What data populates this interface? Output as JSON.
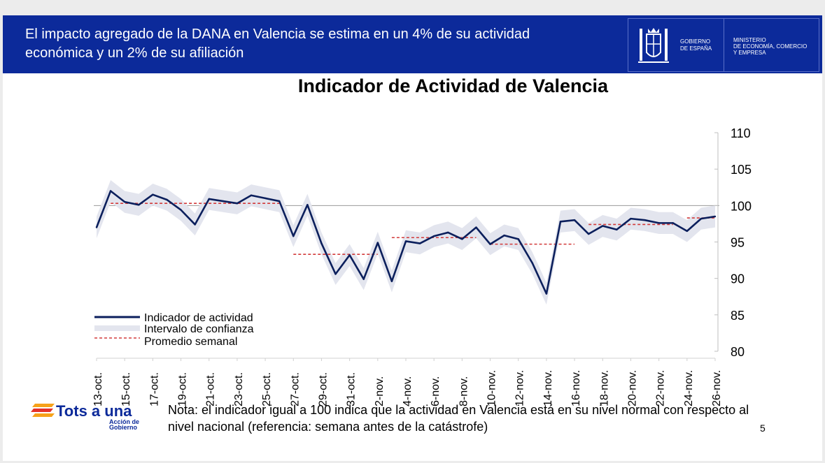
{
  "header": {
    "title": "El impacto agregado de la DANA en Valencia se estima en un 4% de su actividad económica y un 2% de su afiliación",
    "gobierno_line1": "GOBIERNO",
    "gobierno_line2": "DE ESPAÑA",
    "ministerio_line1": "MINISTERIO",
    "ministerio_line2": "DE ECONOMÍA, COMERCIO",
    "ministerio_line3": "Y EMPRESA"
  },
  "chart_data": {
    "type": "line",
    "title": "Indicador de Actividad de Valencia",
    "ylim": [
      80,
      110
    ],
    "yticks": [
      "80",
      "85",
      "90",
      "95",
      "100",
      "105",
      "110"
    ],
    "reference_line": 100,
    "x_tick_labels": [
      "13-oct.",
      "15-oct.",
      "17-oct.",
      "19-oct.",
      "21-oct.",
      "23-oct.",
      "25-oct.",
      "27-oct.",
      "29-oct.",
      "31-oct.",
      "2-nov.",
      "4-nov.",
      "6-nov.",
      "8-nov.",
      "10-nov.",
      "12-nov.",
      "14-nov.",
      "16-nov.",
      "18-nov.",
      "20-nov.",
      "22-nov.",
      "24-nov.",
      "26-nov."
    ],
    "series": [
      {
        "name": "Indicador de actividad",
        "color": "#0b1f5c",
        "values": [
          97.0,
          102.0,
          100.5,
          100.1,
          101.5,
          100.8,
          99.4,
          97.4,
          100.9,
          100.6,
          100.3,
          101.4,
          101.0,
          100.6,
          95.8,
          100.1,
          94.8,
          90.6,
          93.2,
          89.9,
          94.9,
          89.6,
          95.1,
          94.8,
          95.8,
          96.3,
          95.4,
          97.0,
          94.7,
          95.9,
          95.4,
          92.1,
          87.9,
          97.8,
          98.0,
          96.1,
          97.2,
          96.7,
          98.2,
          98.0,
          97.6,
          97.6,
          96.5,
          98.2,
          98.5
        ]
      },
      {
        "name": "Intervalo de confianza",
        "color": "#e3e5ee",
        "halfwidth": 1.5
      },
      {
        "name": "Promedio semanal",
        "color": "#d23a3a",
        "segments": [
          {
            "start": 1,
            "end": 13,
            "value": 100.3
          },
          {
            "start": 14,
            "end": 20,
            "value": 93.3
          },
          {
            "start": 21,
            "end": 27,
            "value": 95.6
          },
          {
            "start": 28,
            "end": 34,
            "value": 94.7
          },
          {
            "start": 35,
            "end": 41,
            "value": 97.4
          },
          {
            "start": 42,
            "end": 44,
            "value": 98.3
          }
        ]
      }
    ]
  },
  "legend": {
    "items": [
      "Indicador de actividad",
      "Intervalo de confianza",
      "Promedio semanal"
    ]
  },
  "footer": {
    "note": "Nota: el indicador igual a 100 indica que la actividad en Valencia está en su nivel normal con respecto al nivel nacional (referencia: semana antes de la catástrofe)",
    "page_number": "5",
    "brand": "Tots a una",
    "brand_sub_line1": "Acción de",
    "brand_sub_line2": "Gobierno"
  }
}
